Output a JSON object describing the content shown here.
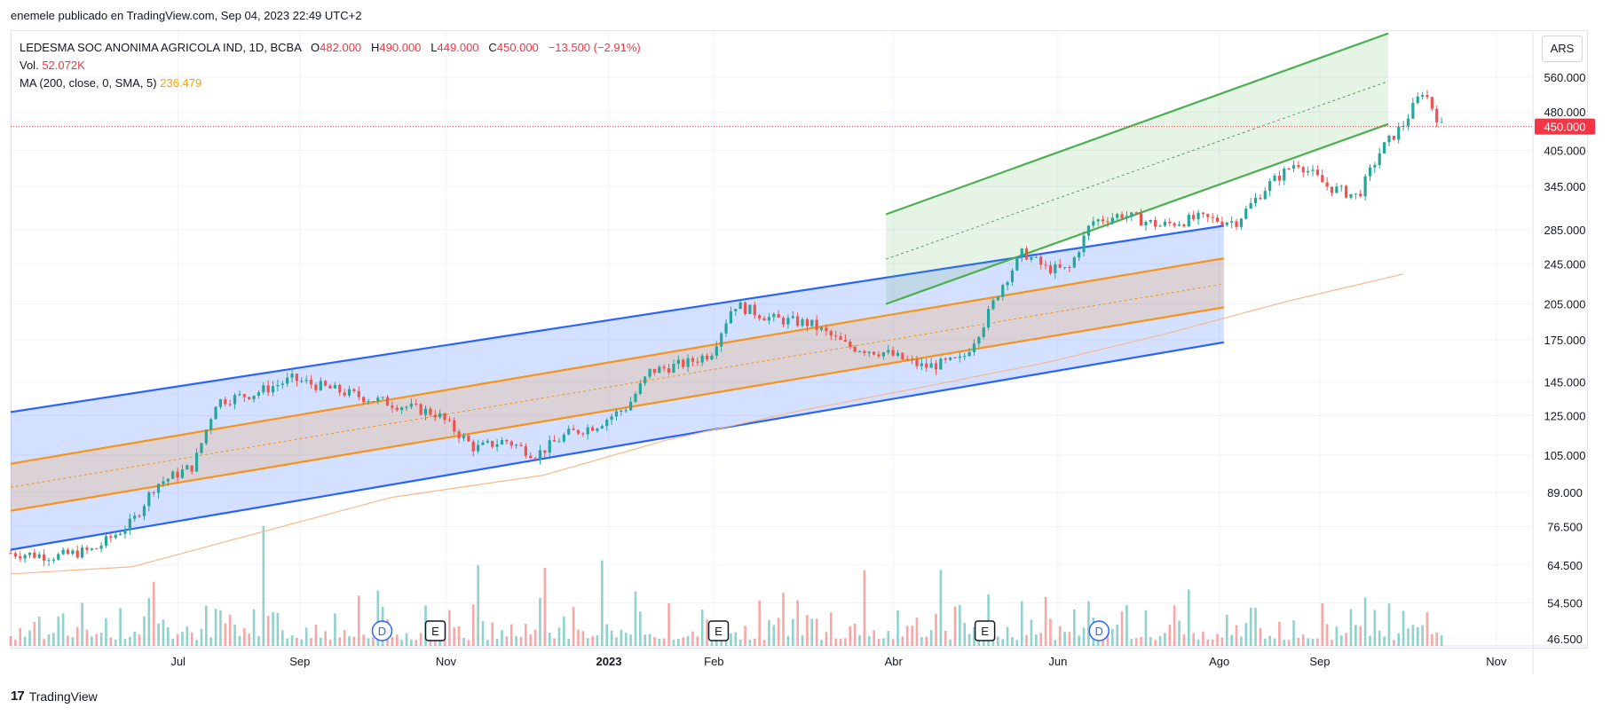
{
  "header": {
    "publish_line": "enemele publicado en TradingView.com, Sep 04, 2023 22:49 UTC+2"
  },
  "legend": {
    "symbol": "LEDESMA SOC ANONIMA AGRICOLA IND, 1D, BCBA",
    "o_label": "O",
    "o_value": "482.000",
    "h_label": "H",
    "h_value": "490.000",
    "l_label": "L",
    "l_value": "449.000",
    "c_label": "C",
    "c_value": "450.000",
    "change": "−13.500 (−2.91%)",
    "vol_label": "Vol.",
    "vol_value": "52.072K",
    "ma_label": "MA (200, close, 0, SMA, 5)",
    "ma_value": "236.479"
  },
  "currency": "ARS",
  "footer": {
    "brand": "TradingView",
    "logo": "17"
  },
  "colors": {
    "up": "#26a69a",
    "down": "#ef5350",
    "blue_channel": "#2962ff",
    "orange_channel": "#f7931a",
    "green_channel": "#4caf50",
    "ma": "#f7b98b",
    "last_price": "#f23645"
  },
  "chart_data": {
    "type": "candlestick",
    "symbol": "LEDESMA SOC ANONIMA AGRICOLA IND",
    "interval": "1D",
    "exchange": "BCBA",
    "y_scale": "log",
    "y_ticks": [
      46.5,
      54.5,
      64.5,
      76.5,
      89,
      105,
      125,
      145,
      175,
      205,
      245,
      285,
      345,
      405,
      480,
      560
    ],
    "y_tick_labels": [
      "46.500",
      "54.500",
      "64.500",
      "76.500",
      "89.000",
      "105.000",
      "125.000",
      "145.000",
      "175.000",
      "205.000",
      "245.000",
      "285.000",
      "345.000",
      "405.000",
      "480.000",
      "560.000"
    ],
    "last_price": 450,
    "last_price_label": "450.000",
    "x_axis_labels": [
      {
        "label": "Jul",
        "x": 0.11
      },
      {
        "label": "Sep",
        "x": 0.19
      },
      {
        "label": "Nov",
        "x": 0.286
      },
      {
        "label": "2023",
        "x": 0.393
      },
      {
        "label": "Feb",
        "x": 0.462
      },
      {
        "label": "Abr",
        "x": 0.58
      },
      {
        "label": "Jun",
        "x": 0.688
      },
      {
        "label": "Ago",
        "x": 0.794
      },
      {
        "label": "Sep",
        "x": 0.86
      },
      {
        "label": "Nov",
        "x": 0.976
      }
    ],
    "price_path": [
      {
        "x": 0.0,
        "p": 68
      },
      {
        "x": 0.03,
        "p": 67
      },
      {
        "x": 0.055,
        "p": 69
      },
      {
        "x": 0.08,
        "p": 78
      },
      {
        "x": 0.095,
        "p": 92
      },
      {
        "x": 0.12,
        "p": 100
      },
      {
        "x": 0.135,
        "p": 133
      },
      {
        "x": 0.16,
        "p": 138
      },
      {
        "x": 0.185,
        "p": 147
      },
      {
        "x": 0.205,
        "p": 142
      },
      {
        "x": 0.23,
        "p": 136
      },
      {
        "x": 0.255,
        "p": 131
      },
      {
        "x": 0.28,
        "p": 126
      },
      {
        "x": 0.305,
        "p": 108
      },
      {
        "x": 0.325,
        "p": 112
      },
      {
        "x": 0.345,
        "p": 105
      },
      {
        "x": 0.365,
        "p": 115
      },
      {
        "x": 0.385,
        "p": 120
      },
      {
        "x": 0.405,
        "p": 130
      },
      {
        "x": 0.42,
        "p": 152
      },
      {
        "x": 0.445,
        "p": 158
      },
      {
        "x": 0.46,
        "p": 165
      },
      {
        "x": 0.475,
        "p": 205
      },
      {
        "x": 0.5,
        "p": 192
      },
      {
        "x": 0.525,
        "p": 188
      },
      {
        "x": 0.55,
        "p": 170
      },
      {
        "x": 0.575,
        "p": 165
      },
      {
        "x": 0.6,
        "p": 155
      },
      {
        "x": 0.625,
        "p": 160
      },
      {
        "x": 0.64,
        "p": 190
      },
      {
        "x": 0.65,
        "p": 220
      },
      {
        "x": 0.665,
        "p": 258
      },
      {
        "x": 0.68,
        "p": 240
      },
      {
        "x": 0.695,
        "p": 238
      },
      {
        "x": 0.71,
        "p": 295
      },
      {
        "x": 0.73,
        "p": 305
      },
      {
        "x": 0.755,
        "p": 290
      },
      {
        "x": 0.78,
        "p": 300
      },
      {
        "x": 0.805,
        "p": 295
      },
      {
        "x": 0.825,
        "p": 345
      },
      {
        "x": 0.845,
        "p": 385
      },
      {
        "x": 0.865,
        "p": 345
      },
      {
        "x": 0.885,
        "p": 330
      },
      {
        "x": 0.9,
        "p": 405
      },
      {
        "x": 0.915,
        "p": 455
      },
      {
        "x": 0.928,
        "p": 530
      },
      {
        "x": 0.94,
        "p": 450
      }
    ],
    "ma_path": [
      {
        "x": 0.0,
        "p": 62
      },
      {
        "x": 0.08,
        "p": 64
      },
      {
        "x": 0.16,
        "p": 74
      },
      {
        "x": 0.25,
        "p": 87
      },
      {
        "x": 0.35,
        "p": 96
      },
      {
        "x": 0.43,
        "p": 112
      },
      {
        "x": 0.52,
        "p": 128
      },
      {
        "x": 0.6,
        "p": 142
      },
      {
        "x": 0.68,
        "p": 158
      },
      {
        "x": 0.76,
        "p": 180
      },
      {
        "x": 0.84,
        "p": 208
      },
      {
        "x": 0.92,
        "p": 236
      }
    ],
    "volume_path": [
      {
        "x": 0.06,
        "v": 0.25
      },
      {
        "x": 0.1,
        "v": 0.6
      },
      {
        "x": 0.11,
        "v": 0.9
      },
      {
        "x": 0.19,
        "v": 0.95
      },
      {
        "x": 0.41,
        "v": 0.55
      },
      {
        "x": 0.45,
        "v": 0.85
      },
      {
        "x": 0.49,
        "v": 0.5
      },
      {
        "x": 0.6,
        "v": 0.72
      },
      {
        "x": 0.64,
        "v": 0.8
      },
      {
        "x": 0.71,
        "v": 0.7
      },
      {
        "x": 0.76,
        "v": 0.4
      },
      {
        "x": 0.84,
        "v": 0.4
      }
    ],
    "event_markers": [
      {
        "label": "D",
        "x": 0.244,
        "kind": "dividend"
      },
      {
        "label": "E",
        "x": 0.279,
        "kind": "earnings"
      },
      {
        "label": "E",
        "x": 0.465,
        "kind": "earnings"
      },
      {
        "label": "E",
        "x": 0.64,
        "kind": "earnings"
      },
      {
        "label": "D",
        "x": 0.715,
        "kind": "dividend"
      }
    ],
    "drawings": {
      "blue_channel": {
        "x_start": 0.0,
        "x_end": 0.797,
        "upper": [
          127,
          290
        ],
        "lower": [
          69,
          173
        ]
      },
      "orange_channel": {
        "x_start": 0.0,
        "x_end": 0.797,
        "upper": [
          101,
          251
        ],
        "lower": [
          82,
          202
        ],
        "mid": [
          91,
          224
        ]
      },
      "green_channel": {
        "x_start": 0.575,
        "x_end": 0.905,
        "upper": [
          305,
          680
        ],
        "lower": [
          205,
          455
        ],
        "mid": [
          250,
          550
        ]
      }
    },
    "grid": true
  }
}
